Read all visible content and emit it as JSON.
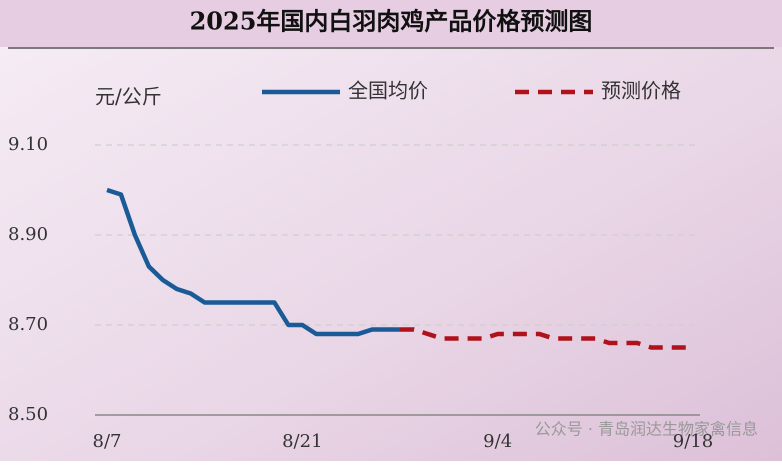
{
  "chart_data": {
    "type": "line",
    "title": "2025年国内白羽肉鸡产品价格预测图",
    "y_label": "元/公斤",
    "watermark": "公众号 · 青岛润达生物家禽信息",
    "categories": [
      "8/7",
      null,
      null,
      null,
      null,
      null,
      null,
      null,
      null,
      null,
      null,
      null,
      null,
      null,
      "8/21",
      null,
      null,
      null,
      null,
      null,
      null,
      null,
      null,
      null,
      null,
      null,
      null,
      null,
      "9/4",
      null,
      null,
      null,
      null,
      null,
      null,
      null,
      null,
      null,
      null,
      null,
      null,
      null,
      "9/18"
    ],
    "series": [
      {
        "name": "全国均价",
        "color": "#1a5a96",
        "dashed": false,
        "values": [
          9.0,
          8.99,
          8.9,
          8.83,
          8.8,
          8.78,
          8.77,
          8.75,
          8.75,
          8.75,
          8.75,
          8.75,
          8.75,
          8.7,
          8.7,
          8.68,
          8.68,
          8.68,
          8.68,
          8.69,
          8.69,
          8.69,
          null,
          null,
          null,
          null,
          null,
          null,
          null,
          null,
          null,
          null,
          null,
          null,
          null,
          null,
          null,
          null,
          null,
          null,
          null,
          null,
          null
        ]
      },
      {
        "name": "预测价格",
        "color": "#b0121b",
        "dashed": true,
        "values": [
          null,
          null,
          null,
          null,
          null,
          null,
          null,
          null,
          null,
          null,
          null,
          null,
          null,
          null,
          null,
          null,
          null,
          null,
          null,
          null,
          null,
          8.69,
          8.69,
          8.68,
          8.67,
          8.67,
          8.67,
          8.67,
          8.68,
          8.68,
          8.68,
          8.68,
          8.67,
          8.67,
          8.67,
          8.67,
          8.66,
          8.66,
          8.66,
          8.65,
          8.65,
          8.65,
          8.65
        ]
      }
    ],
    "ylim": [
      8.5,
      9.2
    ],
    "yticks": [
      {
        "value": 8.5,
        "label": "8.50"
      },
      {
        "value": 8.7,
        "label": "8.70"
      },
      {
        "value": 8.9,
        "label": "8.90"
      },
      {
        "value": 9.1,
        "label": "9.10"
      }
    ],
    "grid": true
  }
}
